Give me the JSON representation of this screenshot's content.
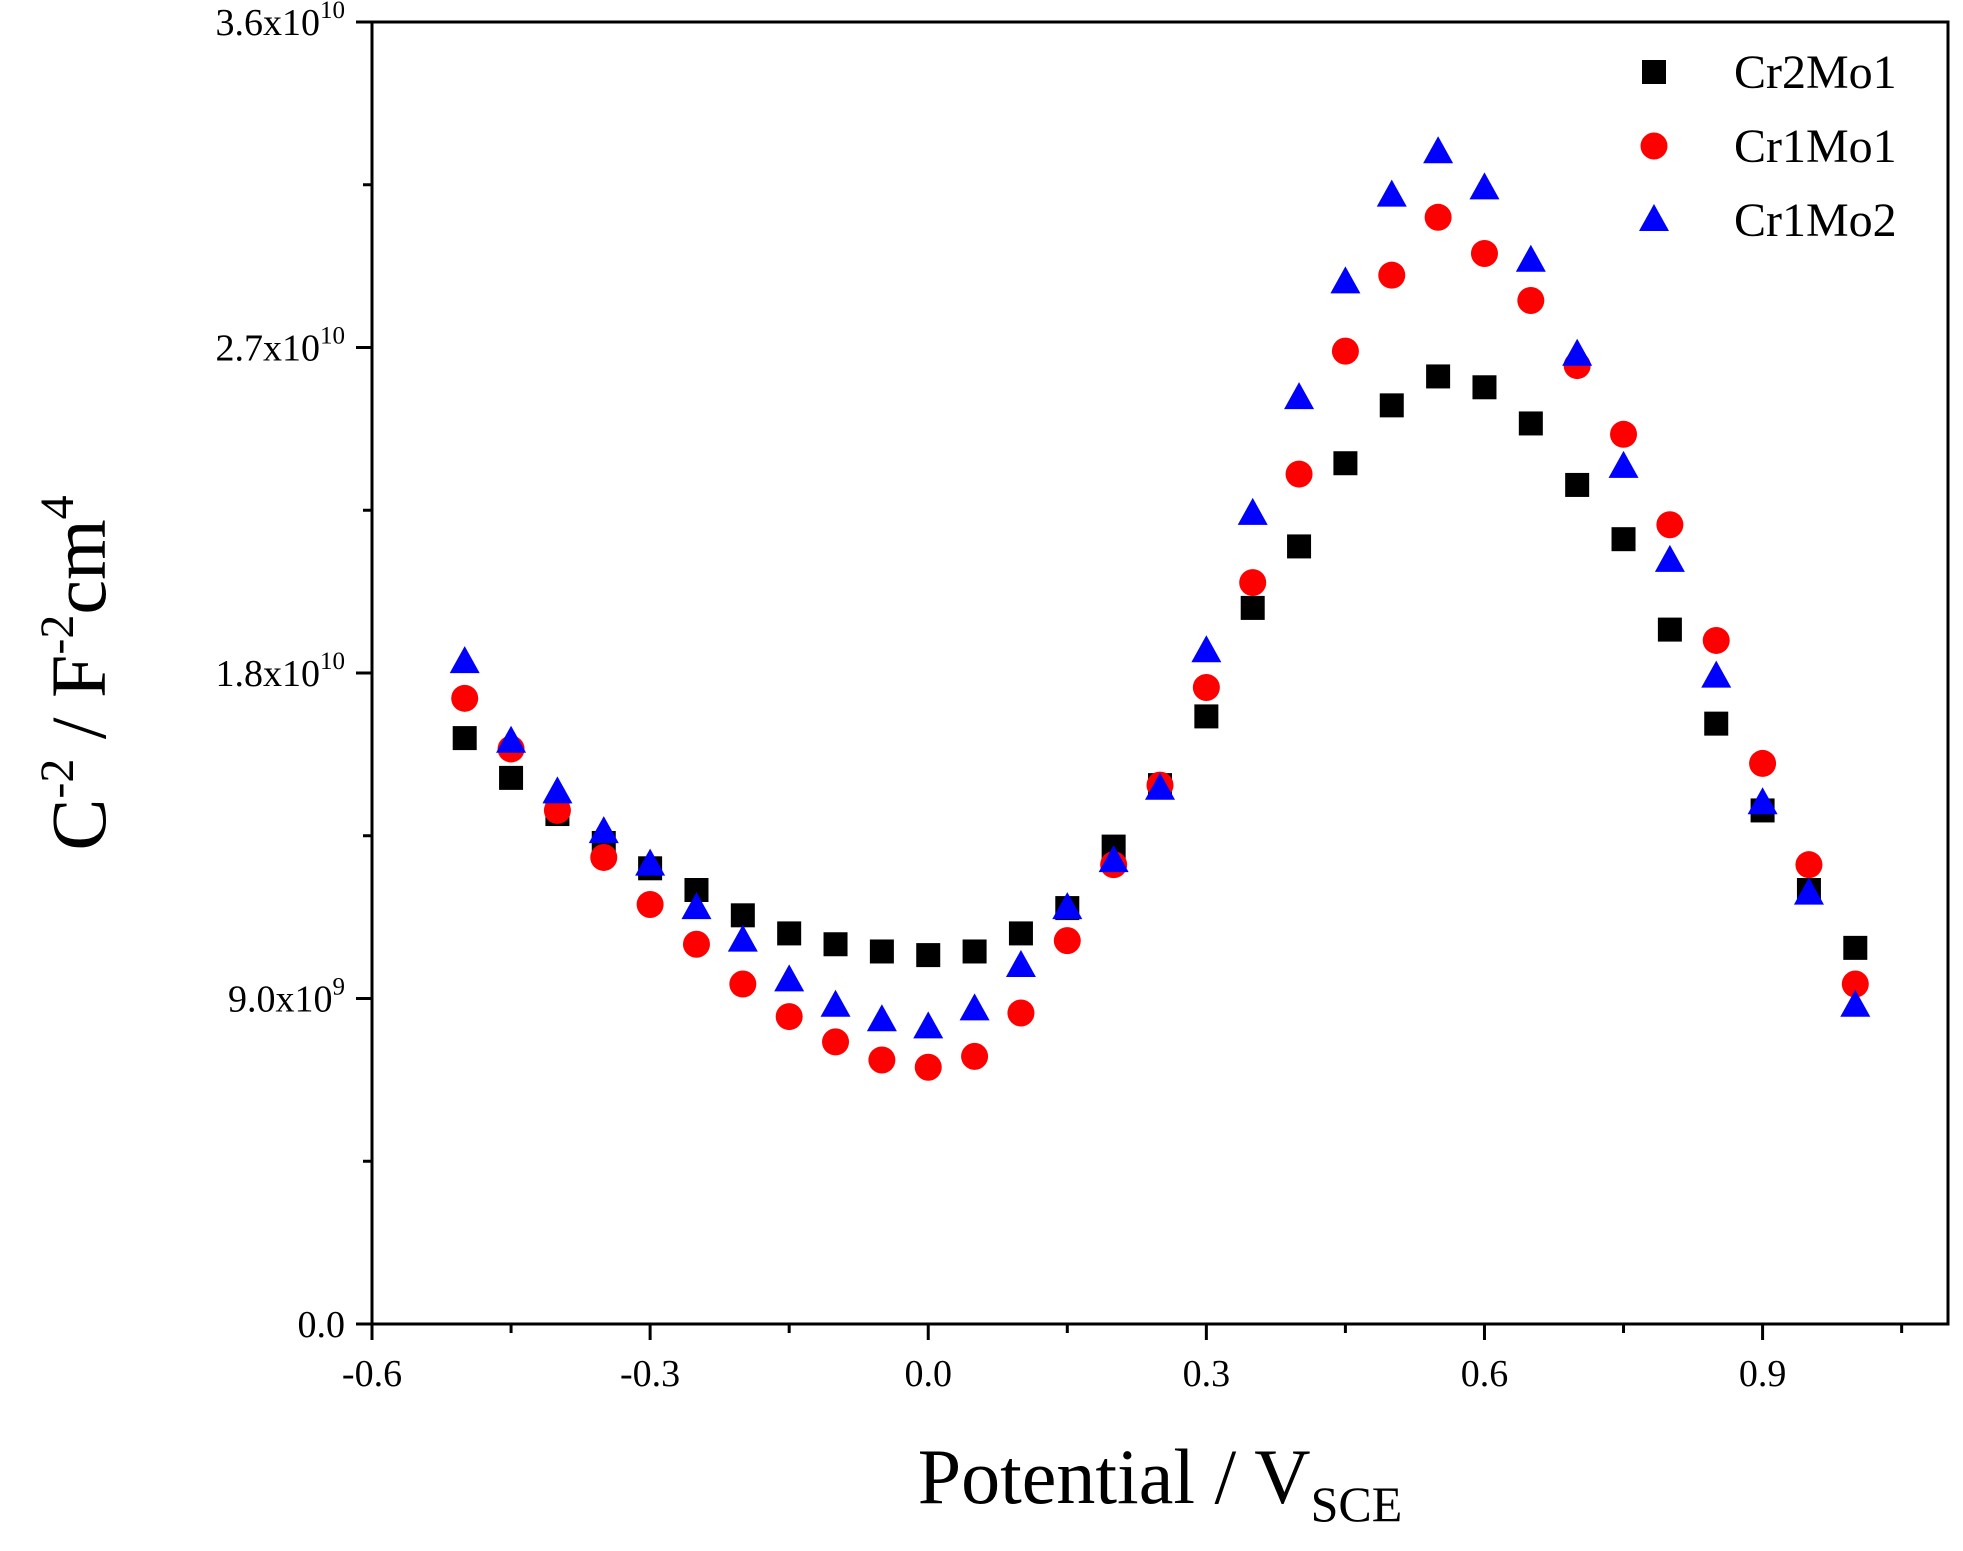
{
  "chart_data": {
    "type": "scatter",
    "xlabel": "Potential / V",
    "xlabel_sub": "SCE",
    "ylabel_base": "C",
    "ylabel_sup1": "-2",
    "ylabel_mid": " / F",
    "ylabel_sup2": "-2",
    "ylabel_unit": "cm",
    "ylabel_sup3": "4",
    "xlim": [
      -0.6,
      1.1
    ],
    "ylim": [
      0,
      36000000000
    ],
    "x_ticks": [
      {
        "value": -0.6,
        "label": "-0.6"
      },
      {
        "value": -0.3,
        "label": "-0.3"
      },
      {
        "value": 0.0,
        "label": "0.0"
      },
      {
        "value": 0.3,
        "label": "0.3"
      },
      {
        "value": 0.6,
        "label": "0.6"
      },
      {
        "value": 0.9,
        "label": "0.9"
      }
    ],
    "x_minor_ticks": [
      -0.45,
      -0.15,
      0.15,
      0.45,
      0.75,
      1.05
    ],
    "y_ticks": [
      {
        "value": 0,
        "mantissa": "0.0",
        "exp": ""
      },
      {
        "value": 9000000000,
        "mantissa": "9.0x10",
        "exp": "9"
      },
      {
        "value": 18000000000,
        "mantissa": "1.8x10",
        "exp": "10"
      },
      {
        "value": 27000000000,
        "mantissa": "2.7x10",
        "exp": "10"
      },
      {
        "value": 36000000000,
        "mantissa": "3.6x10",
        "exp": "10"
      }
    ],
    "y_minor_ticks": [
      4500000000,
      13500000000,
      22500000000,
      31500000000
    ],
    "legend_position": "top-right",
    "x": [
      -0.5,
      -0.45,
      -0.4,
      -0.35,
      -0.3,
      -0.25,
      -0.2,
      -0.15,
      -0.1,
      -0.05,
      0.0,
      0.05,
      0.1,
      0.15,
      0.2,
      0.25,
      0.3,
      0.35,
      0.4,
      0.45,
      0.5,
      0.55,
      0.6,
      0.65,
      0.7,
      0.75,
      0.8,
      0.85,
      0.9,
      0.95,
      1.0
    ],
    "series": [
      {
        "name": "Cr2Mo1",
        "marker": "square",
        "color": "#000000",
        "values": [
          16200000000,
          15100000000,
          14100000000,
          13300000000,
          12600000000,
          12000000000,
          11300000000,
          10800000000,
          10500000000,
          10300000000,
          10200000000,
          10300000000,
          10800000000,
          11500000000,
          13200000000,
          14900000000,
          16800000000,
          19800000000,
          21500000000,
          23800000000,
          25400000000,
          26200000000,
          25900000000,
          24900000000,
          23200000000,
          21700000000,
          19200000000,
          16600000000,
          14200000000,
          12000000000,
          10400000000
        ]
      },
      {
        "name": "Cr1Mo1",
        "marker": "circle",
        "color": "#ff0000",
        "values": [
          17300000000,
          15900000000,
          14200000000,
          12900000000,
          11600000000,
          10500000000,
          9400000000,
          8500000000,
          7800000000,
          7300000000,
          7100000000,
          7400000000,
          8600000000,
          10600000000,
          12700000000,
          14900000000,
          17600000000,
          20500000000,
          23500000000,
          26900000000,
          29000000000,
          30600000000,
          29600000000,
          28300000000,
          26500000000,
          24600000000,
          22100000000,
          18900000000,
          15500000000,
          12700000000,
          9400000000
        ]
      },
      {
        "name": "Cr1Mo2",
        "marker": "triangle",
        "color": "#0000ff",
        "values": [
          18300000000,
          16100000000,
          14700000000,
          13600000000,
          12700000000,
          11500000000,
          10600000000,
          9500000000,
          8800000000,
          8400000000,
          8200000000,
          8700000000,
          9900000000,
          11500000000,
          12800000000,
          14800000000,
          18600000000,
          22400000000,
          25600000000,
          28800000000,
          31200000000,
          32400000000,
          31400000000,
          29400000000,
          26800000000,
          23700000000,
          21100000000,
          17900000000,
          14400000000,
          11900000000,
          8800000000
        ]
      }
    ]
  }
}
